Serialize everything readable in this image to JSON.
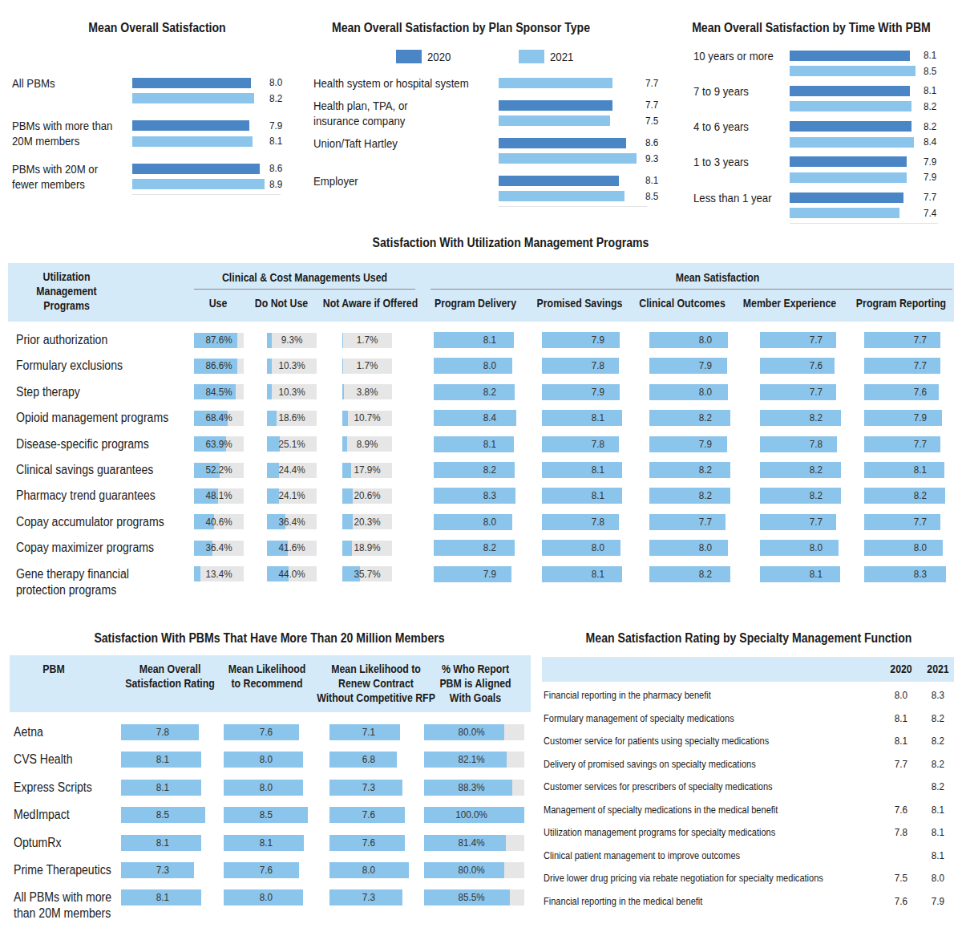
{
  "chart_data": [
    {
      "type": "bar",
      "orientation": "horizontal",
      "title": "Mean Overall Satisfaction",
      "categories": [
        "All PBMs",
        "PBMs with more than\n20M members",
        "PBMs with 20M or\nfewer members"
      ],
      "series": [
        {
          "color": "#4a86c5",
          "values": [
            8.0,
            7.9,
            8.6
          ],
          "value_labels": [
            "8.0",
            "7.9",
            "8.6"
          ]
        },
        {
          "color": "#8cc5eb",
          "values": [
            8.2,
            8.1,
            8.9
          ],
          "value_labels": [
            "8.2",
            "8.1",
            "8.9"
          ]
        }
      ],
      "xlim": [
        0,
        10
      ],
      "tick_labels": false,
      "data_labels": true
    },
    {
      "type": "bar",
      "orientation": "horizontal",
      "title": "Mean Overall Satisfaction by Plan Sponsor Type",
      "categories": [
        "Health system or hospital system",
        "Health plan, TPA, or\ninsurance company",
        "Union/Taft Hartley",
        "Employer"
      ],
      "series": [
        {
          "name": "2020",
          "color": "#4a86c5",
          "values": [
            null,
            7.7,
            8.6,
            8.1
          ],
          "value_labels": [
            null,
            "7.7",
            "8.6",
            "8.1"
          ]
        },
        {
          "name": "2021",
          "color": "#8cc5eb",
          "values": [
            7.7,
            7.5,
            9.3,
            8.5
          ],
          "value_labels": [
            "7.7",
            "7.5",
            "9.3",
            "8.5"
          ]
        }
      ],
      "xlim": [
        0,
        10
      ],
      "tick_labels": false,
      "data_labels": true,
      "legend": "top"
    },
    {
      "type": "bar",
      "orientation": "horizontal",
      "title": "Mean Overall Satisfaction by Time With PBM",
      "categories": [
        "10 years or more",
        "7 to 9 years",
        "4 to 6 years",
        "1 to 3 years",
        "Less than 1 year"
      ],
      "series": [
        {
          "color": "#4a86c5",
          "values": [
            8.1,
            8.1,
            8.2,
            7.9,
            7.7
          ],
          "value_labels": [
            "8.1",
            "8.1",
            "8.2",
            "7.9",
            "7.7"
          ]
        },
        {
          "color": "#8cc5eb",
          "values": [
            8.5,
            8.2,
            8.4,
            7.9,
            7.4
          ],
          "value_labels": [
            "8.5",
            "8.2",
            "8.4",
            "7.9",
            "7.4"
          ]
        }
      ],
      "xlim": [
        0,
        10
      ],
      "tick_labels": false,
      "data_labels": true
    }
  ],
  "utilization_table": {
    "title": "Satisfaction With Utilization Management Programs",
    "row_header": "Utilization\nManagement\nPrograms",
    "group_headers": [
      "Clinical & Cost Managements Used",
      "Mean Satisfaction"
    ],
    "usage_columns": [
      "Use",
      "Do Not Use",
      "Not Aware if Offered"
    ],
    "satisfaction_columns": [
      "Program Delivery",
      "Promised Savings",
      "Clinical Outcomes",
      "Member Experience",
      "Program Reporting"
    ],
    "usage_range": [
      0,
      100
    ],
    "satisfaction_range": [
      0,
      10
    ],
    "bar_color": "#8cc5eb",
    "rows": [
      {
        "label": "Prior authorization",
        "usage": [
          87.6,
          9.3,
          1.7
        ],
        "usage_labels": [
          "87.6%",
          "9.3%",
          "1.7%"
        ],
        "satisfaction": [
          8.1,
          7.9,
          8.0,
          7.7,
          7.7
        ],
        "satisfaction_labels": [
          "8.1",
          "7.9",
          "8.0",
          "7.7",
          "7.7"
        ]
      },
      {
        "label": "Formulary exclusions",
        "usage": [
          86.6,
          10.3,
          1.7
        ],
        "usage_labels": [
          "86.6%",
          "10.3%",
          "1.7%"
        ],
        "satisfaction": [
          8.0,
          7.8,
          7.9,
          7.6,
          7.7
        ],
        "satisfaction_labels": [
          "8.0",
          "7.8",
          "7.9",
          "7.6",
          "7.7"
        ]
      },
      {
        "label": "Step therapy",
        "usage": [
          84.5,
          10.3,
          3.8
        ],
        "usage_labels": [
          "84.5%",
          "10.3%",
          "3.8%"
        ],
        "satisfaction": [
          8.2,
          7.9,
          8.0,
          7.7,
          7.6
        ],
        "satisfaction_labels": [
          "8.2",
          "7.9",
          "8.0",
          "7.7",
          "7.6"
        ]
      },
      {
        "label": "Opioid management programs",
        "usage": [
          68.4,
          18.6,
          10.7
        ],
        "usage_labels": [
          "68.4%",
          "18.6%",
          "10.7%"
        ],
        "satisfaction": [
          8.4,
          8.1,
          8.2,
          8.2,
          7.9
        ],
        "satisfaction_labels": [
          "8.4",
          "8.1",
          "8.2",
          "8.2",
          "7.9"
        ]
      },
      {
        "label": "Disease-specific programs",
        "usage": [
          63.9,
          25.1,
          8.9
        ],
        "usage_labels": [
          "63.9%",
          "25.1%",
          "8.9%"
        ],
        "satisfaction": [
          8.1,
          7.8,
          7.9,
          7.8,
          7.7
        ],
        "satisfaction_labels": [
          "8.1",
          "7.8",
          "7.9",
          "7.8",
          "7.7"
        ]
      },
      {
        "label": "Clinical savings guarantees",
        "usage": [
          52.2,
          24.4,
          17.9
        ],
        "usage_labels": [
          "52.2%",
          "24.4%",
          "17.9%"
        ],
        "satisfaction": [
          8.2,
          8.1,
          8.2,
          8.2,
          8.1
        ],
        "satisfaction_labels": [
          "8.2",
          "8.1",
          "8.2",
          "8.2",
          "8.1"
        ]
      },
      {
        "label": "Pharmacy trend guarantees",
        "usage": [
          48.1,
          24.1,
          20.6
        ],
        "usage_labels": [
          "48.1%",
          "24.1%",
          "20.6%"
        ],
        "satisfaction": [
          8.3,
          8.1,
          8.2,
          8.2,
          8.2
        ],
        "satisfaction_labels": [
          "8.3",
          "8.1",
          "8.2",
          "8.2",
          "8.2"
        ]
      },
      {
        "label": "Copay accumulator programs",
        "usage": [
          40.6,
          36.4,
          20.3
        ],
        "usage_labels": [
          "40.6%",
          "36.4%",
          "20.3%"
        ],
        "satisfaction": [
          8.0,
          7.8,
          7.7,
          7.7,
          7.7
        ],
        "satisfaction_labels": [
          "8.0",
          "7.8",
          "7.7",
          "7.7",
          "7.7"
        ]
      },
      {
        "label": "Copay maximizer programs",
        "usage": [
          36.4,
          41.6,
          18.9
        ],
        "usage_labels": [
          "36.4%",
          "41.6%",
          "18.9%"
        ],
        "satisfaction": [
          8.2,
          8.0,
          8.0,
          8.0,
          8.0
        ],
        "satisfaction_labels": [
          "8.2",
          "8.0",
          "8.0",
          "8.0",
          "8.0"
        ]
      },
      {
        "label": "Gene therapy financial\nprotection programs",
        "usage": [
          13.4,
          44.0,
          35.7
        ],
        "usage_labels": [
          "13.4%",
          "44.0%",
          "35.7%"
        ],
        "satisfaction": [
          7.9,
          8.1,
          8.2,
          8.1,
          8.3
        ],
        "satisfaction_labels": [
          "7.9",
          "8.1",
          "8.2",
          "8.1",
          "8.3"
        ]
      }
    ]
  },
  "pbm_table": {
    "title": "Satisfaction With PBMs That Have More Than 20 Million Members",
    "columns": [
      "PBM",
      "Mean Overall\nSatisfaction Rating",
      "Mean Likelihood\nto Recommend",
      "Mean Likelihood to\nRenew Contract\nWithout Competitive RFP",
      "% Who Report\nPBM is Aligned\nWith Goals"
    ],
    "ranges": [
      [
        0,
        10
      ],
      [
        0,
        10
      ],
      [
        0,
        10
      ],
      [
        0,
        100
      ]
    ],
    "bar_color": "#8cc5eb",
    "rows": [
      {
        "label": "Aetna",
        "values": [
          7.8,
          7.6,
          7.1,
          80.0
        ],
        "value_labels": [
          "7.8",
          "7.6",
          "7.1",
          "80.0%"
        ]
      },
      {
        "label": "CVS Health",
        "values": [
          8.1,
          8.0,
          6.8,
          82.1
        ],
        "value_labels": [
          "8.1",
          "8.0",
          "6.8",
          "82.1%"
        ]
      },
      {
        "label": "Express Scripts",
        "values": [
          8.1,
          8.0,
          7.3,
          88.3
        ],
        "value_labels": [
          "8.1",
          "8.0",
          "7.3",
          "88.3%"
        ]
      },
      {
        "label": "MedImpact",
        "values": [
          8.5,
          8.5,
          7.6,
          100.0
        ],
        "value_labels": [
          "8.5",
          "8.5",
          "7.6",
          "100.0%"
        ]
      },
      {
        "label": "OptumRx",
        "values": [
          8.1,
          8.1,
          7.6,
          81.4
        ],
        "value_labels": [
          "8.1",
          "8.1",
          "7.6",
          "81.4%"
        ]
      },
      {
        "label": "Prime Therapeutics",
        "values": [
          7.3,
          7.6,
          8.0,
          80.0
        ],
        "value_labels": [
          "7.3",
          "7.6",
          "8.0",
          "80.0%"
        ]
      },
      {
        "label": "All PBMs with more\nthan 20M members",
        "values": [
          8.1,
          8.0,
          7.3,
          85.5
        ],
        "value_labels": [
          "8.1",
          "8.0",
          "7.3",
          "85.5%"
        ]
      }
    ]
  },
  "specialty_table": {
    "title": "Mean Satisfaction Rating by Specialty Management Function",
    "columns": [
      "2020",
      "2021"
    ],
    "rows": [
      {
        "label": "Financial reporting in the pharmacy benefit",
        "values": [
          "8.0",
          "8.3"
        ]
      },
      {
        "label": "Formulary management of specialty medications",
        "values": [
          "8.1",
          "8.2"
        ]
      },
      {
        "label": "Customer service for patients using specialty medications",
        "values": [
          "8.1",
          "8.2"
        ]
      },
      {
        "label": "Delivery of promised savings on specialty medications",
        "values": [
          "7.7",
          "8.2"
        ]
      },
      {
        "label": "Customer services for prescribers of specialty medications",
        "values": [
          null,
          "8.2"
        ]
      },
      {
        "label": "Management of specialty medications in the medical benefit",
        "values": [
          "7.6",
          "8.1"
        ]
      },
      {
        "label": "Utilization management programs for specialty medications",
        "values": [
          "7.8",
          "8.1"
        ]
      },
      {
        "label": "Clinical patient management to improve outcomes",
        "values": [
          null,
          "8.1"
        ]
      },
      {
        "label": "Drive lower drug pricing via rebate negotiation for specialty medications",
        "values": [
          "7.5",
          "8.0"
        ]
      },
      {
        "label": "Financial reporting in the medical benefit",
        "values": [
          "7.6",
          "7.9"
        ]
      }
    ]
  }
}
